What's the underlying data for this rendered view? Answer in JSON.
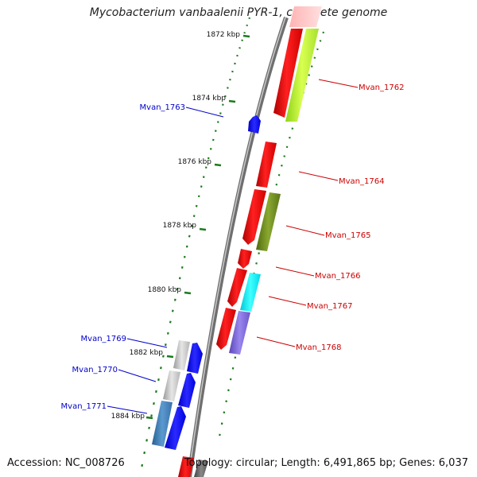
{
  "title": "Mycobacterium vanbaalenii PYR-1, complete genome",
  "footer": {
    "accession": "Accession: NC_008726",
    "summary": "Topology: circular; Length: 6,491,865 bp; Genes: 6,037"
  },
  "colors": {
    "backbone": "#8a8a8a",
    "tick": "#1e7a1e",
    "label_left": "#0000cc",
    "label_right": "#cc0000"
  },
  "ticks": [
    {
      "label": "1872 kbp"
    },
    {
      "label": "1874 kbp"
    },
    {
      "label": "1876 kbp"
    },
    {
      "label": "1878 kbp"
    },
    {
      "label": "1880 kbp"
    },
    {
      "label": "1882 kbp"
    },
    {
      "label": "1884 kbp"
    }
  ],
  "gene_labels": [
    {
      "name": "Mvan_1763",
      "side": "left"
    },
    {
      "name": "Mvan_1769",
      "side": "left"
    },
    {
      "name": "Mvan_1770",
      "side": "left"
    },
    {
      "name": "Mvan_1771",
      "side": "left"
    },
    {
      "name": "Mvan_1762",
      "side": "right"
    },
    {
      "name": "Mvan_1764",
      "side": "right"
    },
    {
      "name": "Mvan_1765",
      "side": "right"
    },
    {
      "name": "Mvan_1766",
      "side": "right"
    },
    {
      "name": "Mvan_1767",
      "side": "right"
    },
    {
      "name": "Mvan_1768",
      "side": "right"
    }
  ]
}
